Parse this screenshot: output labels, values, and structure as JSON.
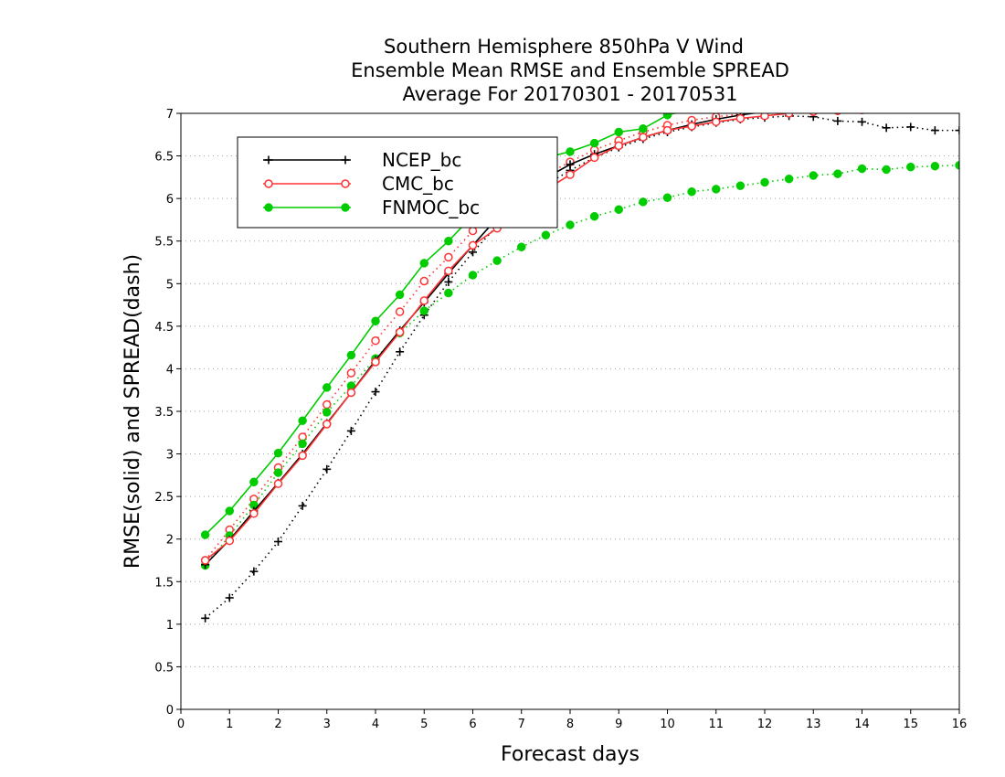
{
  "chart_data": {
    "type": "line",
    "title": [
      "Southern Hemisphere 850hPa V Wind",
      "Ensemble Mean RMSE and Ensemble SPREAD",
      "Average For 20170301 - 20170531"
    ],
    "xlabel": "Forecast days",
    "ylabel": "RMSE(solid) and SPREAD(dash)",
    "xlim": [
      0,
      16
    ],
    "ylim": [
      0,
      7
    ],
    "xticks": [
      0,
      1,
      2,
      3,
      4,
      5,
      6,
      7,
      8,
      9,
      10,
      11,
      12,
      13,
      14,
      15,
      16
    ],
    "yticks": [
      0,
      0.5,
      1,
      1.5,
      2,
      2.5,
      3,
      3.5,
      4,
      4.5,
      5,
      5.5,
      6,
      6.5,
      7
    ],
    "grid": "horizontal dotted",
    "legend_position": "top-left",
    "x": [
      0.5,
      1,
      1.5,
      2,
      2.5,
      3,
      3.5,
      4,
      4.5,
      5,
      5.5,
      6,
      6.5,
      7,
      7.5,
      8,
      8.5,
      9,
      9.5,
      10,
      10.5,
      11,
      11.5,
      12,
      12.5,
      13,
      13.5,
      14,
      14.5,
      15,
      15.5,
      16
    ],
    "series": [
      {
        "name": "NCEP_bc",
        "color": "#000000",
        "marker": "plus",
        "rmse": [
          1.7,
          1.99,
          2.33,
          2.66,
          3.0,
          3.36,
          3.72,
          4.1,
          4.45,
          4.78,
          5.12,
          5.45,
          5.77,
          6.03,
          6.24,
          6.4,
          6.52,
          6.62,
          6.72,
          6.8,
          6.87,
          6.93,
          6.98,
          7.02,
          7.06,
          7.09,
          7.12,
          7.14,
          7.16,
          7.18,
          7.19,
          7.2
        ],
        "spread": [
          1.07,
          1.31,
          1.62,
          1.97,
          2.39,
          2.82,
          3.27,
          3.73,
          4.2,
          4.63,
          5.02,
          5.37,
          5.68,
          5.94,
          6.16,
          6.33,
          6.48,
          6.6,
          6.7,
          6.78,
          6.84,
          6.89,
          6.93,
          6.95,
          6.97,
          6.96,
          6.91,
          6.9,
          6.83,
          6.84,
          6.8,
          6.8
        ]
      },
      {
        "name": "CMC_bc",
        "color": "#ff3333",
        "marker": "circle-open",
        "rmse": [
          1.75,
          1.98,
          2.3,
          2.65,
          2.98,
          3.35,
          3.72,
          4.08,
          4.43,
          4.8,
          5.15,
          5.45,
          5.65,
          5.92,
          6.1,
          6.28,
          6.48,
          6.62,
          6.72,
          6.8,
          6.85,
          6.9,
          6.94,
          6.97,
          7.0,
          7.02,
          7.03,
          7.04,
          7.05,
          7.06,
          7.07,
          7.08
        ],
        "spread": [
          1.75,
          2.11,
          2.47,
          2.84,
          3.2,
          3.58,
          3.95,
          4.33,
          4.67,
          5.03,
          5.31,
          5.62,
          5.9,
          6.1,
          6.28,
          6.43,
          6.57,
          6.68,
          6.78,
          6.86,
          6.92,
          6.96,
          6.99,
          7.02,
          7.05,
          7.06,
          7.08,
          7.09,
          7.1,
          7.1,
          7.11,
          7.12
        ]
      },
      {
        "name": "FNMOC_bc",
        "color": "#00cc00",
        "marker": "circle-filled",
        "rmse": [
          2.05,
          2.33,
          2.67,
          3.01,
          3.39,
          3.78,
          4.16,
          4.56,
          4.87,
          5.24,
          5.5,
          5.8,
          6.1,
          6.35,
          6.48,
          6.55,
          6.65,
          6.78,
          6.82,
          6.98,
          7.05,
          7.1,
          7.14,
          7.18,
          7.21,
          7.23,
          7.25,
          7.26,
          7.27,
          7.28,
          7.29,
          7.3
        ],
        "spread": [
          1.69,
          2.04,
          2.4,
          2.78,
          3.12,
          3.49,
          3.8,
          4.12,
          4.42,
          4.68,
          4.89,
          5.1,
          5.27,
          5.43,
          5.57,
          5.69,
          5.79,
          5.87,
          5.96,
          6.01,
          6.08,
          6.11,
          6.15,
          6.19,
          6.23,
          6.27,
          6.29,
          6.35,
          6.34,
          6.37,
          6.38,
          6.39
        ]
      }
    ]
  }
}
